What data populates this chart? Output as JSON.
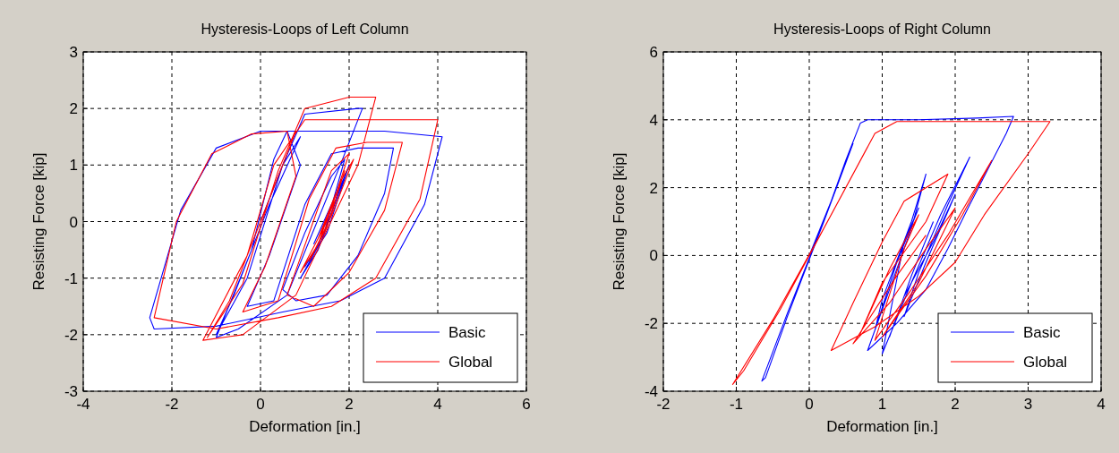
{
  "chart_data": [
    {
      "type": "line",
      "title": "Hysteresis-Loops of Left Column",
      "xlabel": "Deformation [in.]",
      "ylabel": "Resisting Force [kip]",
      "xlim": [
        -4,
        6
      ],
      "ylim": [
        -3,
        3
      ],
      "xticks": [
        -4,
        -2,
        0,
        2,
        4,
        6
      ],
      "yticks": [
        -3,
        -2,
        -1,
        0,
        1,
        2,
        3
      ],
      "grid": true,
      "legend": "bottom right",
      "series": [
        {
          "name": "Basic",
          "color": "#0000ff",
          "x": [
            0,
            0.5,
            0.9,
            0.2,
            -0.6,
            -1.0,
            -0.3,
            0.5,
            1.0,
            2.2,
            2.3,
            1.8,
            0.6,
            -0.5,
            -1.0,
            -0.2,
            0.3,
            0.6,
            2.8,
            4.1,
            3.7,
            2.8,
            1.8,
            0.5,
            -1.0,
            -2.4,
            -2.5,
            -1.8,
            -1.0,
            0.0,
            0.6,
            0.9,
            0.2,
            -0.3,
            0.3,
            1.0,
            1.6,
            2.2,
            3.0,
            2.8,
            2.2,
            1.5,
            0.8,
            0.5,
            1.0,
            1.6,
            1.9,
            1.4,
            0.9,
            1.3,
            1.8,
            2.0,
            1.5,
            1.0,
            1.4,
            1.9,
            1.6,
            1.2
          ],
          "values": [
            0,
            1.0,
            1.5,
            0.3,
            -1.3,
            -2.0,
            -1.0,
            1.0,
            1.9,
            2.0,
            2.0,
            1.0,
            -1.3,
            -1.9,
            -2.05,
            -0.5,
            1.1,
            1.6,
            1.6,
            1.5,
            0.3,
            -1.0,
            -1.4,
            -1.6,
            -1.85,
            -1.9,
            -1.7,
            0.2,
            1.3,
            1.6,
            1.6,
            1.0,
            -0.6,
            -1.5,
            -1.4,
            0.3,
            1.2,
            1.3,
            1.3,
            0.5,
            -0.6,
            -1.3,
            -1.4,
            -1.2,
            -0.2,
            0.8,
            1.1,
            -0.3,
            -1.0,
            -0.5,
            0.6,
            1.0,
            -0.2,
            -0.8,
            -0.3,
            0.8,
            0.3,
            -0.4
          ]
        },
        {
          "name": "Global",
          "color": "#ff0000",
          "x": [
            0,
            0.5,
            0.8,
            0.1,
            -0.7,
            -1.2,
            -0.4,
            0.4,
            1.0,
            2.0,
            2.6,
            2.2,
            0.8,
            -0.4,
            -1.3,
            -0.3,
            0.3,
            1.0,
            3.0,
            4.0,
            3.6,
            2.6,
            1.6,
            0.4,
            -1.0,
            -2.4,
            -1.9,
            -1.1,
            -0.2,
            0.6,
            0.8,
            0.1,
            -0.4,
            0.4,
            1.1,
            1.7,
            2.4,
            3.2,
            2.8,
            2.0,
            1.2,
            0.6,
            1.1,
            1.6,
            2.0,
            1.5,
            0.9,
            1.3,
            1.8,
            2.1,
            1.6,
            1.1,
            1.5,
            1.9,
            1.7,
            1.3,
            1.7
          ],
          "values": [
            0,
            1.0,
            1.6,
            0.2,
            -1.4,
            -2.05,
            -1.1,
            0.9,
            2.0,
            2.2,
            2.2,
            1.0,
            -1.3,
            -2.0,
            -2.1,
            -0.6,
            1.0,
            1.8,
            1.8,
            1.8,
            0.4,
            -1.0,
            -1.5,
            -1.7,
            -1.9,
            -1.7,
            0,
            1.2,
            1.55,
            1.6,
            0.8,
            -0.8,
            -1.6,
            -1.4,
            0.4,
            1.3,
            1.4,
            1.4,
            0.2,
            -0.9,
            -1.5,
            -1.3,
            -0.2,
            0.9,
            1.2,
            0,
            -0.9,
            -0.4,
            0.7,
            1.1,
            0.1,
            -0.7,
            -0.1,
            0.9,
            0.4,
            -0.3,
            0.5
          ]
        }
      ]
    },
    {
      "type": "line",
      "title": "Hysteresis-Loops of Right Column",
      "xlabel": "Deformation [in.]",
      "ylabel": "Resisting Force [kip]",
      "xlim": [
        -2,
        4
      ],
      "ylim": [
        -4,
        6
      ],
      "xticks": [
        -2,
        -1,
        0,
        1,
        2,
        3,
        4
      ],
      "yticks": [
        -4,
        -2,
        0,
        2,
        4,
        6
      ],
      "grid": true,
      "legend": "bottom right",
      "series": [
        {
          "name": "Basic",
          "color": "#0000ff",
          "x": [
            0,
            0.3,
            0.6,
            0.2,
            -0.3,
            -0.6,
            -0.65,
            -0.3,
            0.2,
            0.5,
            0.7,
            0.8,
            1.5,
            2.3,
            2.8,
            2.7,
            2.2,
            1.9,
            1.6,
            1.2,
            0.8,
            1.0,
            1.4,
            1.6,
            1.4,
            1.0,
            0.9,
            1.2,
            1.5,
            1.3,
            1.0,
            1.4,
            1.8,
            2.2,
            1.9,
            1.5,
            1.3,
            1.6,
            2.0,
            1.7,
            1.3,
            1.1,
            1.4,
            1.7
          ],
          "values": [
            0,
            1.6,
            3.3,
            1.0,
            -1.8,
            -3.6,
            -3.7,
            -1.7,
            1.0,
            2.8,
            3.9,
            4.0,
            4.0,
            4.05,
            4.1,
            3.6,
            1.5,
            0.2,
            -1.0,
            -2.0,
            -2.8,
            -1.6,
            0.8,
            2.4,
            1.0,
            -1.3,
            -2.2,
            -0.2,
            1.4,
            0.4,
            -2.9,
            -0.8,
            1.2,
            2.9,
            1.5,
            -0.5,
            -1.8,
            -0.2,
            1.8,
            0.4,
            -1.2,
            -2.4,
            -0.6,
            1.0
          ]
        },
        {
          "name": "Global",
          "color": "#ff0000",
          "x": [
            0,
            0.4,
            0.8,
            0.3,
            -0.4,
            -0.9,
            -1.05,
            -0.5,
            0.2,
            0.6,
            0.9,
            1.2,
            2.0,
            3.3,
            3.0,
            2.4,
            2.0,
            1.5,
            0.9,
            0.3,
            0.6,
            1.0,
            1.3,
            1.9,
            1.6,
            1.0,
            0.7,
            1.1,
            1.5,
            1.3,
            0.9,
            1.4,
            1.9,
            2.5,
            2.1,
            1.6,
            1.0,
            1.5,
            2.0,
            1.6,
            1.1,
            0.6,
            1.2,
            1.6
          ],
          "values": [
            0,
            1.6,
            3.2,
            1.2,
            -1.6,
            -3.4,
            -3.8,
            -1.9,
            0.8,
            2.4,
            3.6,
            3.95,
            3.95,
            3.95,
            3.0,
            1.2,
            -0.2,
            -1.2,
            -2.1,
            -2.8,
            -1.4,
            0.4,
            1.6,
            2.4,
            1.0,
            -0.8,
            -2.3,
            -0.4,
            1.2,
            0.2,
            -2.5,
            -1.0,
            0.6,
            2.8,
            1.2,
            -0.6,
            -2.4,
            -0.8,
            1.4,
            0.2,
            -1.4,
            -2.6,
            -0.6,
            0.6
          ]
        }
      ]
    }
  ]
}
